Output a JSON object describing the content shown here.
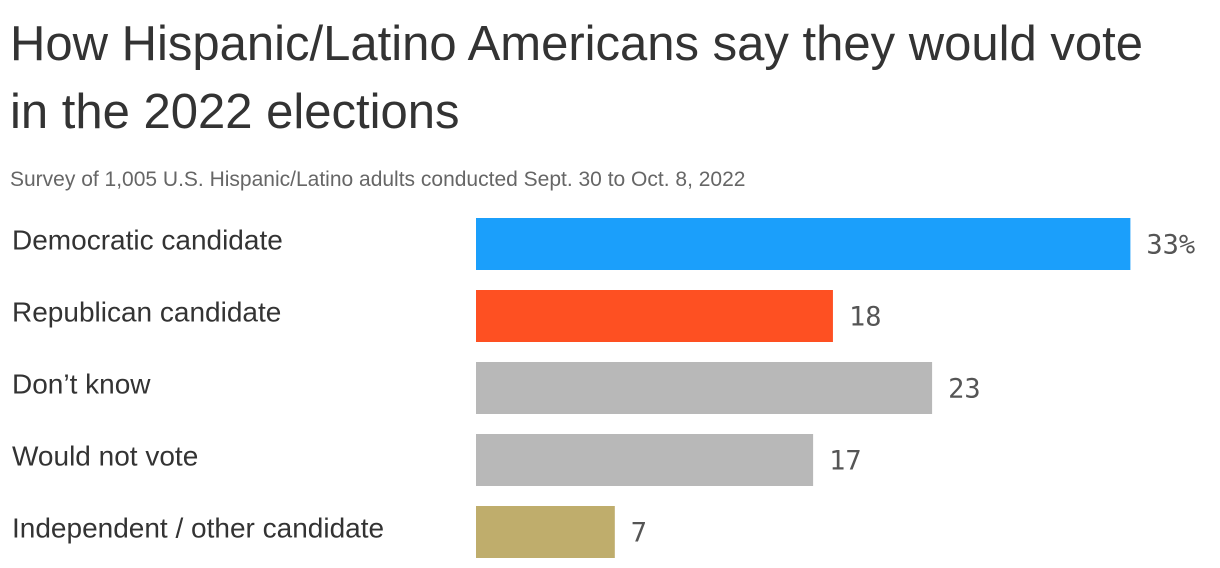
{
  "chart_data": {
    "type": "bar",
    "orientation": "horizontal",
    "title": "How Hispanic/Latino Americans say they would vote in the 2022 elections",
    "subtitle": "Survey of 1,005 U.S. Hispanic/Latino adults conducted Sept. 30 to Oct. 8, 2022",
    "categories": [
      "Democratic candidate",
      "Republican candidate",
      "Don’t know",
      "Would not vote",
      "Independent / other candidate"
    ],
    "values": [
      33,
      18,
      23,
      17,
      7
    ],
    "value_labels": [
      "33%",
      "18",
      "23",
      "17",
      "7"
    ],
    "colors": [
      "#1b9ffb",
      "#fe5022",
      "#b8b8b8",
      "#b8b8b8",
      "#bfad6c"
    ],
    "grid": false,
    "legend": "none",
    "value_unit": "%"
  }
}
